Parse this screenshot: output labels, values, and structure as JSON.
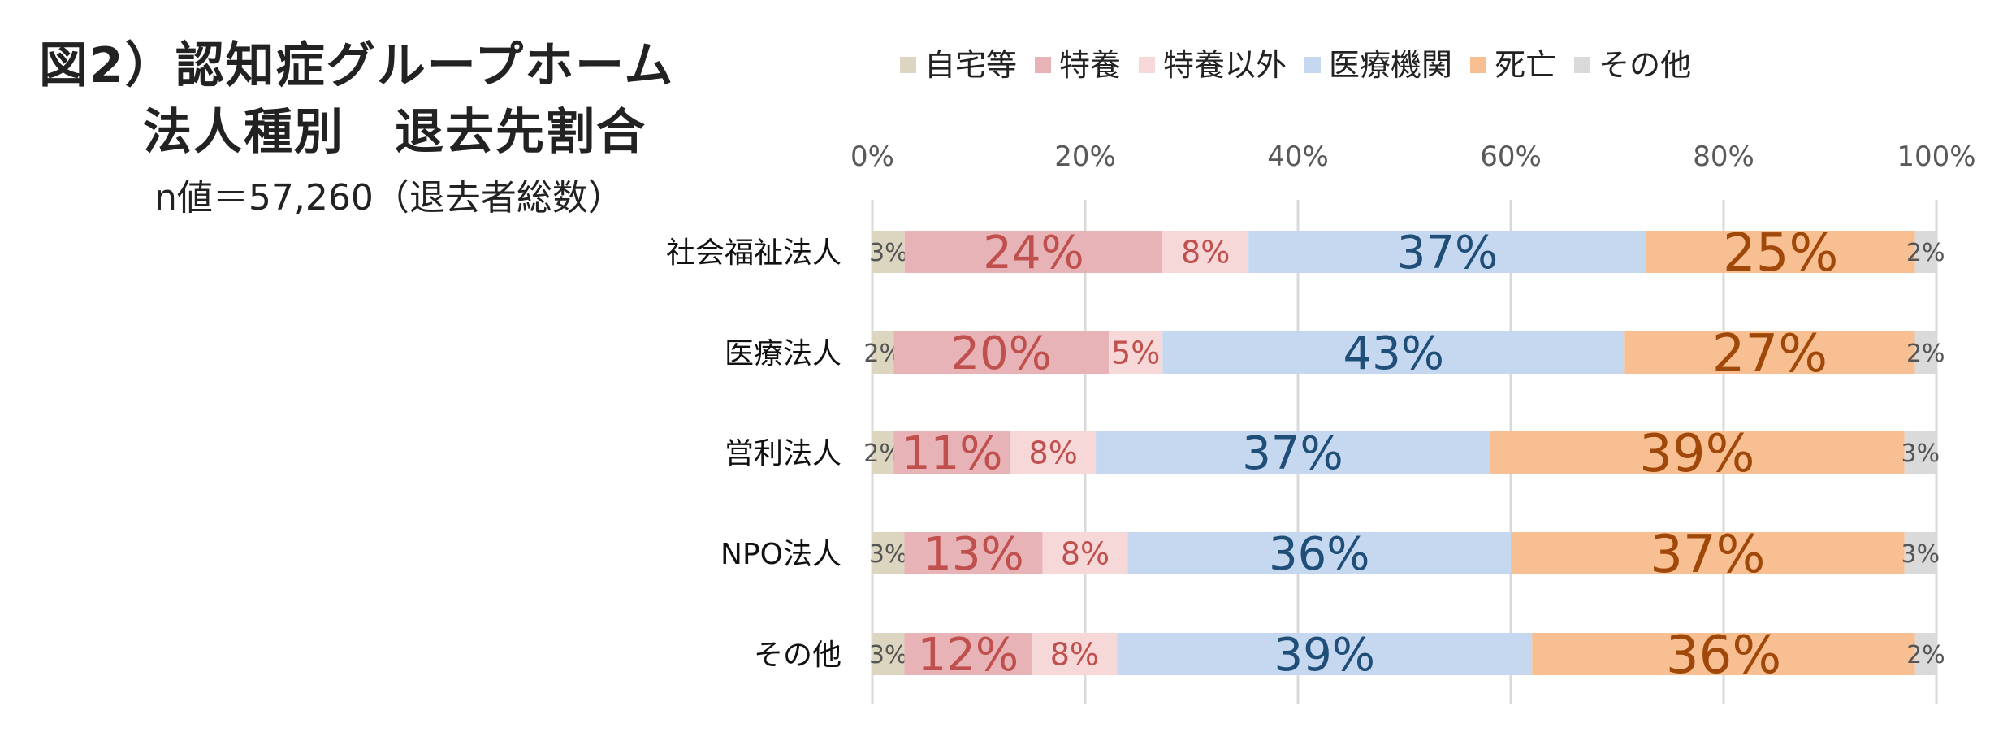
{
  "title": {
    "line1": "図2）認知症グループホーム",
    "line2": "法人種別　退去先割合",
    "subtitle": "n値＝57,260（退去者総数）"
  },
  "colors": {
    "home": "#dcd6c0",
    "tokuyo": "#e8b3b6",
    "tokuyo_other": "#f6d8d9",
    "medical": "#c6d8ef",
    "death": "#f8bf92",
    "other": "#dadada",
    "label_small": "#555555",
    "label_red": "#c0504d",
    "label_blue": "#1f4e79",
    "label_orange": "#a0480a",
    "grid": "#d9d9d9"
  },
  "chart_data": {
    "type": "bar",
    "orientation": "horizontal",
    "stacked": "percent",
    "categories": [
      "社会福祉法人",
      "医療法人",
      "営利法人",
      "NPO法人",
      "その他"
    ],
    "series": [
      {
        "name": "自宅等",
        "values": [
          3,
          2,
          2,
          3,
          3
        ]
      },
      {
        "name": "特養",
        "values": [
          24,
          20,
          11,
          13,
          12
        ]
      },
      {
        "name": "特養以外",
        "values": [
          8,
          5,
          8,
          8,
          8
        ]
      },
      {
        "name": "医療機関",
        "values": [
          37,
          43,
          37,
          36,
          39
        ]
      },
      {
        "name": "死亡",
        "values": [
          25,
          27,
          39,
          37,
          36
        ]
      },
      {
        "name": "その他",
        "values": [
          2,
          2,
          3,
          3,
          2
        ]
      }
    ],
    "xlim": [
      0,
      100
    ],
    "ticks": [
      "0%",
      "20%",
      "40%",
      "60%",
      "80%",
      "100%"
    ],
    "grid": true,
    "legend": "top"
  }
}
